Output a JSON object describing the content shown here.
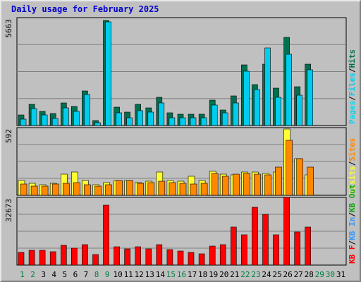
{
  "colors": {
    "hits": "#007050",
    "files": "#00ccee",
    "pages": "#00d8f0",
    "visits": "#ffff33",
    "sites": "#ff8800",
    "kbin": "#3399ff",
    "kbout": "#00aa00",
    "kbf": "#ff0000",
    "day_weekday": "#000000",
    "day_weekend": "#008040"
  },
  "chart_data": {
    "type": "bar",
    "title": "Daily usage for February 2025",
    "categories": [
      "1",
      "2",
      "3",
      "4",
      "5",
      "6",
      "7",
      "8",
      "9",
      "10",
      "11",
      "12",
      "13",
      "14",
      "15",
      "16",
      "17",
      "18",
      "19",
      "20",
      "21",
      "22",
      "23",
      "24",
      "25",
      "26",
      "27",
      "28",
      "29",
      "30",
      "31"
    ],
    "weekend_days": [
      "1",
      "2",
      "8",
      "9",
      "15",
      "16",
      "22",
      "23",
      "29",
      "30"
    ],
    "panels": [
      {
        "ymax_label": "5663",
        "ylim": [
          0,
          5663
        ],
        "legend": [
          "Pages",
          "/",
          "Files",
          "/",
          "Hits"
        ],
        "series": [
          {
            "name": "Hits",
            "values": [
              580,
              1130,
              740,
              620,
              1190,
              1020,
              1840,
              250,
              5600,
              960,
              700,
              1120,
              920,
              1500,
              690,
              590,
              590,
              600,
              1350,
              830,
              1570,
              3220,
              2170,
              3250,
              2000,
              4700,
              2080,
              3280,
              0,
              0,
              0
            ]
          },
          {
            "name": "Files",
            "values": [
              320,
              900,
              560,
              360,
              930,
              760,
              1650,
              150,
              5520,
              680,
              410,
              780,
              720,
              1200,
              430,
              400,
              410,
              430,
              1090,
              670,
              1200,
              2890,
              1900,
              4140,
              1500,
              3790,
              1620,
              2950,
              0,
              0,
              0
            ]
          },
          {
            "name": "Pages",
            "values": [
              0,
              0,
              0,
              0,
              0,
              0,
              0,
              0,
              0,
              0,
              0,
              0,
              0,
              0,
              0,
              0,
              0,
              0,
              0,
              0,
              0,
              0,
              0,
              0,
              0,
              0,
              0,
              0,
              0,
              0,
              0
            ]
          }
        ]
      },
      {
        "ymax_label": "592",
        "ylim": [
          0,
          592
        ],
        "legend": [
          "Visits",
          "/",
          "Sites"
        ],
        "series": [
          {
            "name": "Visits",
            "values": [
              130,
              110,
              95,
              110,
              190,
              205,
              135,
              95,
              115,
              135,
              135,
              115,
              125,
              210,
              130,
              125,
              170,
              130,
              215,
              190,
              180,
              210,
              210,
              195,
              205,
              592,
              330,
              185,
              0,
              0,
              0
            ]
          },
          {
            "name": "Sites",
            "values": [
              100,
              85,
              85,
              100,
              105,
              115,
              95,
              85,
              95,
              130,
              135,
              105,
              115,
              125,
              115,
              110,
              100,
              110,
              195,
              170,
              190,
              195,
              190,
              180,
              250,
              490,
              330,
              255,
              0,
              0,
              0
            ]
          }
        ]
      },
      {
        "ymax_label": "32673",
        "ylim": [
          0,
          32673
        ],
        "legend": [
          "KB F",
          "/",
          "KB In",
          "/",
          "KB Out"
        ],
        "series": [
          {
            "name": "KB F",
            "values": [
              6300,
              7200,
              7200,
              6500,
              9600,
              8300,
              10200,
              5200,
              29700,
              8900,
              8000,
              9100,
              7900,
              10200,
              7500,
              6800,
              6300,
              5400,
              9500,
              10200,
              18900,
              14800,
              28600,
              25000,
              14800,
              33400,
              16200,
              18900,
              0,
              0,
              0
            ]
          },
          {
            "name": "KB In",
            "values": [
              0,
              0,
              0,
              0,
              0,
              0,
              0,
              0,
              0,
              0,
              0,
              0,
              0,
              0,
              0,
              0,
              0,
              0,
              0,
              0,
              0,
              0,
              0,
              0,
              0,
              0,
              0,
              0,
              0,
              0,
              0
            ]
          },
          {
            "name": "KB Out",
            "values": [
              0,
              0,
              0,
              0,
              0,
              0,
              0,
              0,
              0,
              0,
              0,
              0,
              0,
              0,
              0,
              0,
              0,
              0,
              0,
              0,
              0,
              0,
              0,
              0,
              0,
              0,
              0,
              0,
              0,
              0,
              0
            ]
          }
        ]
      }
    ]
  }
}
